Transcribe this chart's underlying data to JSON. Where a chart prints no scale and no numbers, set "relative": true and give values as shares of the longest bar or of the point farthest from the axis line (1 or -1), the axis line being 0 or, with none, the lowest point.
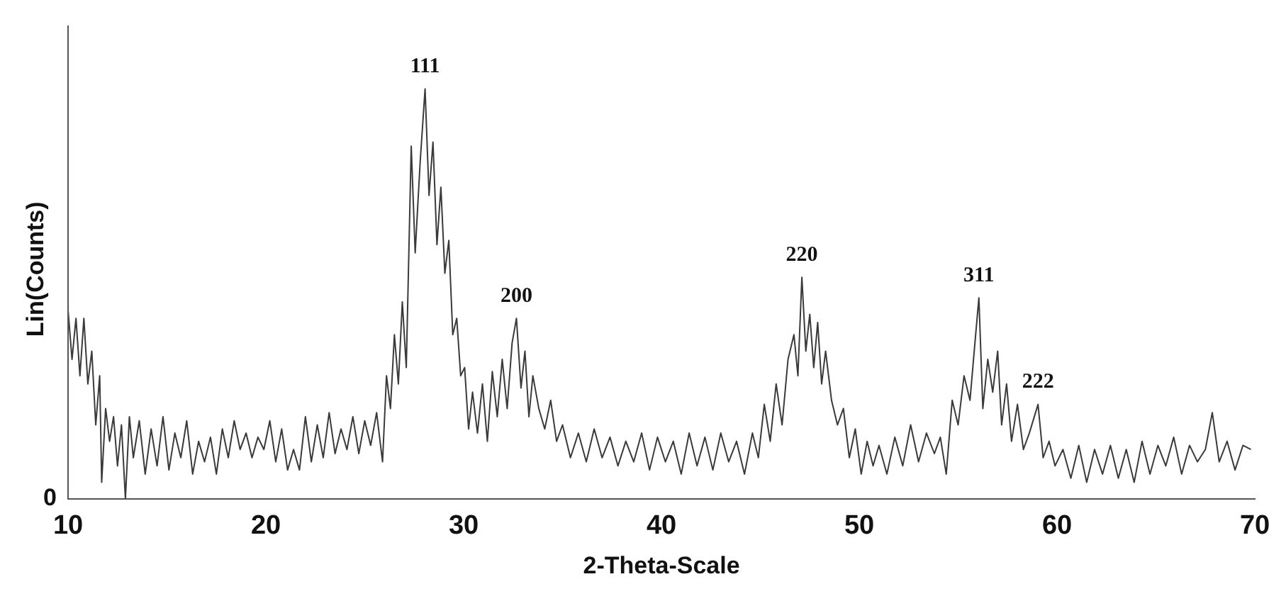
{
  "chart_data": {
    "type": "line",
    "relative": true,
    "xlabel": "2-Theta-Scale",
    "ylabel": "Lin(Counts)",
    "xlim": [
      10,
      70
    ],
    "xticks": [
      10,
      20,
      30,
      40,
      50,
      60,
      70
    ],
    "grid": false,
    "legend": false,
    "marker": "none",
    "line_style": "solid",
    "series": [
      {
        "color": "#3a3a3a",
        "x": [
          10.0,
          10.2,
          10.4,
          10.6,
          10.8,
          11.0,
          11.2,
          11.4,
          11.6,
          11.7,
          11.9,
          12.1,
          12.3,
          12.5,
          12.7,
          12.9,
          13.1,
          13.3,
          13.6,
          13.9,
          14.2,
          14.5,
          14.8,
          15.1,
          15.4,
          15.7,
          16.0,
          16.3,
          16.6,
          16.9,
          17.2,
          17.5,
          17.8,
          18.1,
          18.4,
          18.7,
          19.0,
          19.3,
          19.6,
          19.9,
          20.2,
          20.5,
          20.8,
          21.1,
          21.4,
          21.7,
          22.0,
          22.3,
          22.6,
          22.9,
          23.2,
          23.5,
          23.8,
          24.1,
          24.4,
          24.7,
          25.0,
          25.3,
          25.6,
          25.9,
          26.1,
          26.3,
          26.5,
          26.7,
          26.9,
          27.1,
          27.35,
          27.55,
          27.8,
          28.05,
          28.25,
          28.45,
          28.65,
          28.85,
          29.05,
          29.25,
          29.45,
          29.65,
          29.85,
          30.05,
          30.25,
          30.45,
          30.7,
          30.95,
          31.2,
          31.45,
          31.7,
          31.95,
          32.2,
          32.45,
          32.67,
          32.9,
          33.1,
          33.3,
          33.5,
          33.8,
          34.1,
          34.4,
          34.7,
          35.0,
          35.4,
          35.8,
          36.2,
          36.6,
          37.0,
          37.4,
          37.8,
          38.2,
          38.6,
          39.0,
          39.4,
          39.8,
          40.2,
          40.6,
          41.0,
          41.4,
          41.8,
          42.2,
          42.6,
          43.0,
          43.4,
          43.8,
          44.2,
          44.6,
          44.9,
          45.2,
          45.5,
          45.8,
          46.1,
          46.4,
          46.7,
          46.9,
          47.1,
          47.3,
          47.5,
          47.7,
          47.9,
          48.1,
          48.3,
          48.6,
          48.9,
          49.2,
          49.5,
          49.8,
          50.1,
          50.4,
          50.7,
          51.0,
          51.4,
          51.8,
          52.2,
          52.6,
          53.0,
          53.4,
          53.8,
          54.1,
          54.4,
          54.7,
          55.0,
          55.3,
          55.6,
          55.85,
          56.05,
          56.25,
          56.5,
          56.75,
          57.0,
          57.2,
          57.45,
          57.7,
          58.0,
          58.3,
          58.6,
          59.04,
          59.3,
          59.6,
          59.9,
          60.3,
          60.7,
          61.1,
          61.5,
          61.9,
          62.3,
          62.7,
          63.1,
          63.5,
          63.9,
          64.3,
          64.7,
          65.1,
          65.5,
          65.9,
          66.3,
          66.7,
          67.1,
          67.5,
          67.85,
          68.2,
          68.6,
          69.0,
          69.4,
          69.8
        ],
        "values": [
          0.46,
          0.34,
          0.44,
          0.3,
          0.44,
          0.28,
          0.36,
          0.18,
          0.3,
          0.04,
          0.22,
          0.14,
          0.2,
          0.08,
          0.18,
          0.0,
          0.2,
          0.1,
          0.19,
          0.06,
          0.17,
          0.08,
          0.2,
          0.07,
          0.16,
          0.1,
          0.19,
          0.06,
          0.14,
          0.09,
          0.15,
          0.06,
          0.17,
          0.1,
          0.19,
          0.12,
          0.16,
          0.1,
          0.15,
          0.12,
          0.19,
          0.09,
          0.17,
          0.07,
          0.12,
          0.07,
          0.2,
          0.09,
          0.18,
          0.1,
          0.21,
          0.11,
          0.17,
          0.12,
          0.2,
          0.11,
          0.19,
          0.13,
          0.21,
          0.09,
          0.3,
          0.22,
          0.4,
          0.28,
          0.48,
          0.32,
          0.86,
          0.6,
          0.82,
          1.0,
          0.74,
          0.87,
          0.62,
          0.76,
          0.55,
          0.63,
          0.4,
          0.44,
          0.3,
          0.32,
          0.17,
          0.26,
          0.16,
          0.28,
          0.14,
          0.31,
          0.2,
          0.34,
          0.22,
          0.38,
          0.44,
          0.27,
          0.36,
          0.2,
          0.3,
          0.22,
          0.17,
          0.24,
          0.14,
          0.18,
          0.1,
          0.16,
          0.09,
          0.17,
          0.1,
          0.15,
          0.08,
          0.14,
          0.09,
          0.16,
          0.07,
          0.15,
          0.09,
          0.14,
          0.06,
          0.16,
          0.08,
          0.15,
          0.07,
          0.16,
          0.09,
          0.14,
          0.06,
          0.16,
          0.1,
          0.23,
          0.14,
          0.28,
          0.18,
          0.34,
          0.4,
          0.3,
          0.54,
          0.36,
          0.45,
          0.32,
          0.43,
          0.28,
          0.36,
          0.24,
          0.18,
          0.22,
          0.1,
          0.17,
          0.06,
          0.14,
          0.08,
          0.13,
          0.06,
          0.15,
          0.08,
          0.18,
          0.09,
          0.16,
          0.11,
          0.15,
          0.06,
          0.24,
          0.18,
          0.3,
          0.24,
          0.38,
          0.49,
          0.22,
          0.34,
          0.26,
          0.36,
          0.18,
          0.28,
          0.14,
          0.23,
          0.12,
          0.16,
          0.23,
          0.1,
          0.14,
          0.08,
          0.12,
          0.05,
          0.13,
          0.04,
          0.12,
          0.06,
          0.13,
          0.05,
          0.12,
          0.04,
          0.14,
          0.06,
          0.13,
          0.08,
          0.15,
          0.06,
          0.13,
          0.09,
          0.12,
          0.21,
          0.09,
          0.14,
          0.07,
          0.13,
          0.12
        ]
      }
    ],
    "annotations": [
      {
        "text": "111",
        "x": 28.05,
        "y": 1.0
      },
      {
        "text": "200",
        "x": 32.67,
        "y": 0.44
      },
      {
        "text": "220",
        "x": 47.1,
        "y": 0.54
      },
      {
        "text": "311",
        "x": 56.05,
        "y": 0.49
      },
      {
        "text": "222",
        "x": 59.04,
        "y": 0.23
      },
      "0"
    ]
  }
}
